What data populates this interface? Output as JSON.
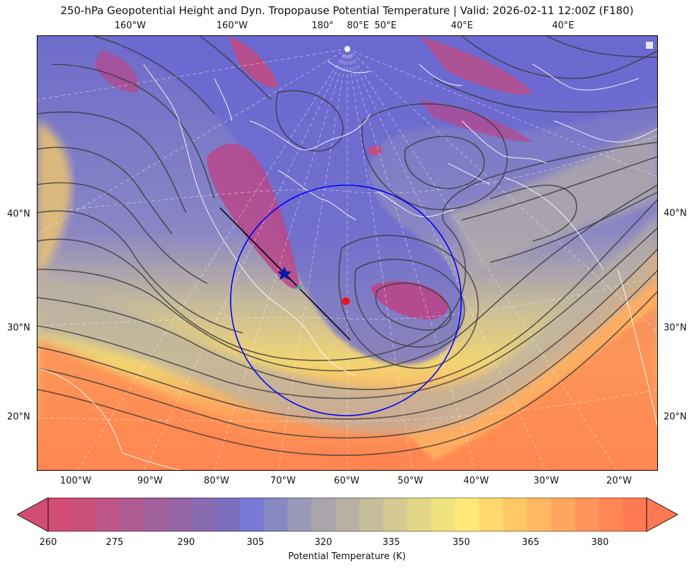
{
  "title": "250-hPa Geopotential Height and Dyn. Tropopause Potential Temperature   |  Valid: 2026-02-11 12:00Z (F180)",
  "map": {
    "top_labels": [
      "160°W",
      "160°W",
      "180°",
      "80°E",
      "50°E",
      "40°E",
      "40°E"
    ],
    "bottom_labels": [
      "100°W",
      "90°W",
      "80°W",
      "70°W",
      "60°W",
      "50°W",
      "40°W",
      "30°W",
      "20°W"
    ],
    "left_labels": [
      "40°N",
      "30°N",
      "20°N"
    ],
    "right_labels": [
      "40°N",
      "30°N",
      "20°N"
    ],
    "markers": {
      "center_dot_color": "#e8141c",
      "star_color": "#0a1aa8",
      "teal_marker_color": "#2bb3a0",
      "circle_color": "#0000ff",
      "line_color": "#000000"
    }
  },
  "colorbar": {
    "label": "Potential Temperature (K)",
    "ticks": [
      "260",
      "275",
      "290",
      "305",
      "320",
      "335",
      "350",
      "365",
      "380"
    ],
    "min": 257.5,
    "max": 392.5,
    "colors": [
      "#d24d75",
      "#c9507a",
      "#bb5686",
      "#ad5b91",
      "#a0609b",
      "#9464a4",
      "#886bb0",
      "#7c70bd",
      "#7878d6",
      "#8888c2",
      "#9a98b8",
      "#aaa4ac",
      "#b8b0a4",
      "#c6be9a",
      "#d4ca92",
      "#e2d688",
      "#f0e27c",
      "#ffe878",
      "#ffd86e",
      "#ffc866",
      "#ffb862",
      "#ffa65e",
      "#ff955a",
      "#ff8656",
      "#ff7a52"
    ]
  }
}
